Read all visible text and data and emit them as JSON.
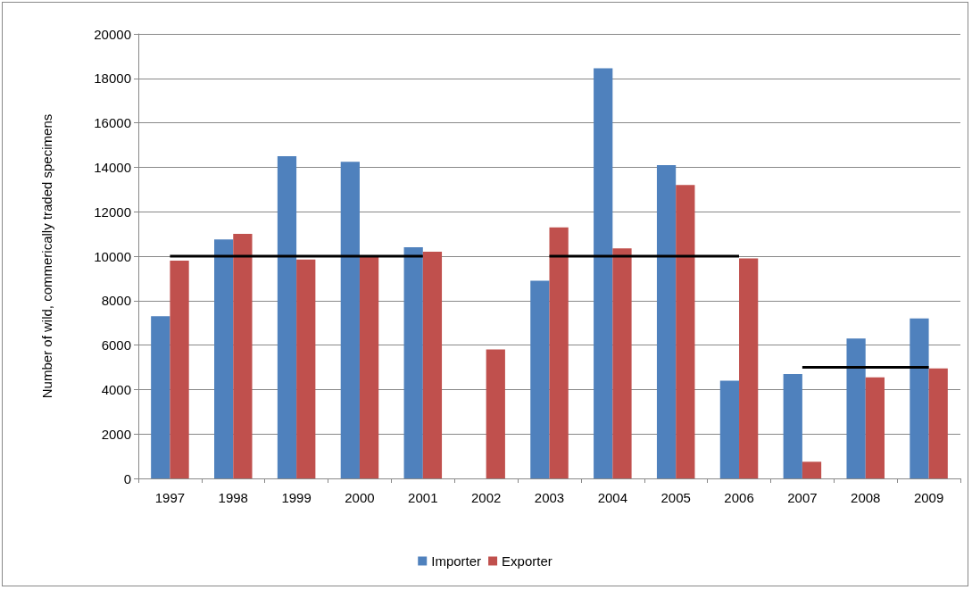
{
  "chart_data": {
    "type": "bar",
    "ylabel": "Number of wild, commerically traded specimens",
    "categories": [
      "1997",
      "1998",
      "1999",
      "2000",
      "2001",
      "2002",
      "2003",
      "2004",
      "2005",
      "2006",
      "2007",
      "2008",
      "2009"
    ],
    "series": [
      {
        "name": "Importer",
        "color": "#4f81bd",
        "values": [
          7300,
          10750,
          14500,
          14250,
          10400,
          null,
          8900,
          18450,
          14100,
          4400,
          4700,
          6300,
          7200
        ]
      },
      {
        "name": "Exporter",
        "color": "#c0504d",
        "values": [
          9800,
          11000,
          9850,
          10000,
          10200,
          5800,
          11300,
          10350,
          13200,
          9900,
          750,
          4550,
          4950
        ]
      },
      {
        "type": "line",
        "color": "#000000",
        "values": [
          10000,
          10000,
          10000,
          10000,
          10000,
          null,
          null,
          null,
          null,
          null,
          null,
          null,
          null
        ]
      },
      {
        "type": "line",
        "color": "#000000",
        "values": [
          null,
          null,
          null,
          null,
          null,
          null,
          10000,
          10000,
          10000,
          10000,
          null,
          null,
          null
        ]
      },
      {
        "type": "line",
        "color": "#000000",
        "values": [
          null,
          null,
          null,
          null,
          null,
          null,
          null,
          null,
          null,
          null,
          5000,
          5000,
          5000
        ]
      }
    ],
    "ylim": [
      0,
      20000
    ],
    "yticks": [
      0,
      2000,
      4000,
      6000,
      8000,
      10000,
      12000,
      14000,
      16000,
      18000,
      20000
    ],
    "grid": "y",
    "legend": "bottom",
    "marker": "none",
    "line_style": "solid"
  }
}
